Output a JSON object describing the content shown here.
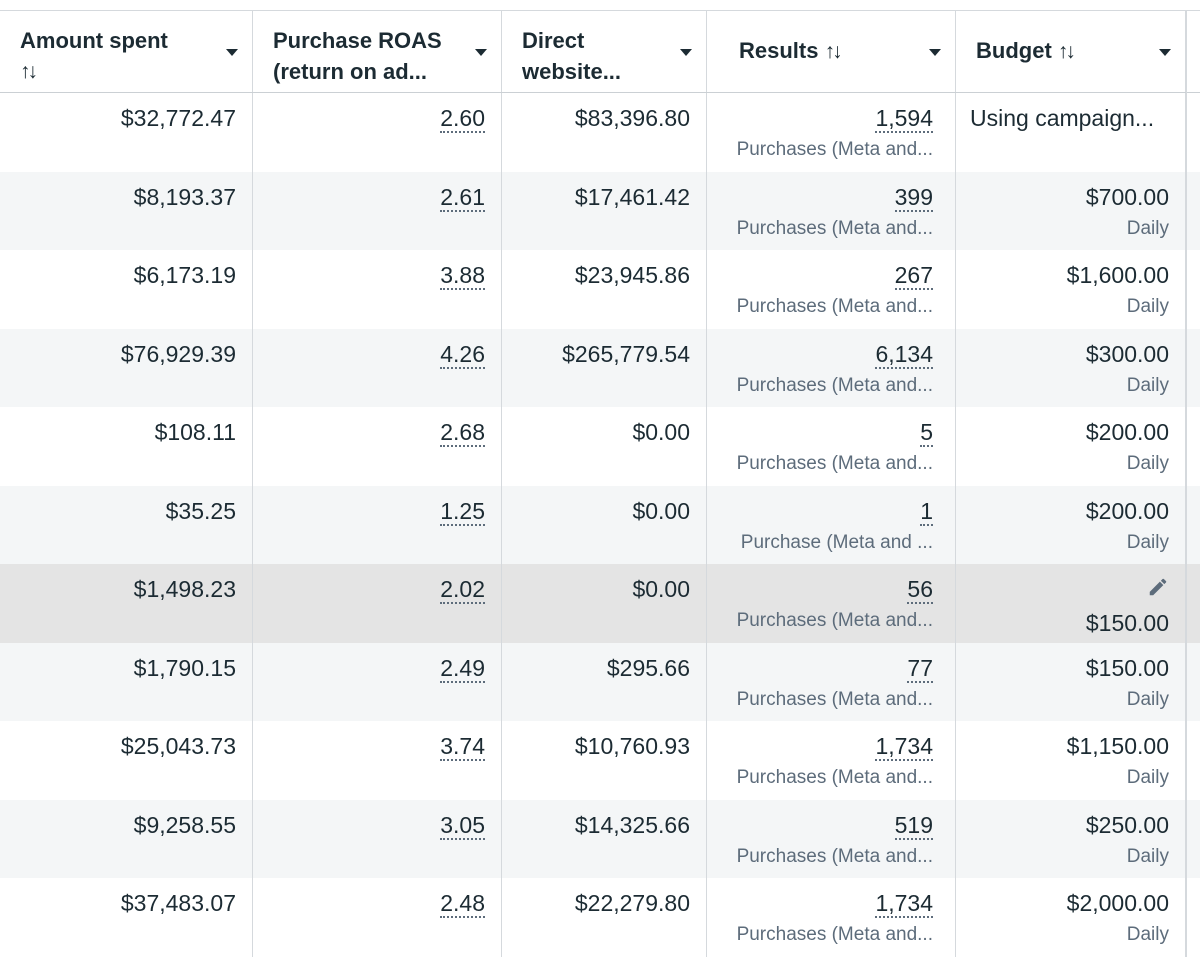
{
  "columns": {
    "amount_spent": {
      "line1": "Amount spent",
      "line2": "↑↓"
    },
    "purchase_roas": {
      "line1": "Purchase ROAS",
      "line2": "(return on ad..."
    },
    "direct_website": {
      "line1": "Direct",
      "line2": "website..."
    },
    "results": {
      "label": "Results",
      "sort": "↑↓"
    },
    "budget": {
      "label": "Budget",
      "sort": "↑↓"
    }
  },
  "rows": [
    {
      "amount_spent": "$32,772.47",
      "roas": "2.60",
      "direct": "$83,396.80",
      "results": "1,594",
      "results_type": "Purchases (Meta and...",
      "budget": "Using campaign...",
      "budget_period": ""
    },
    {
      "amount_spent": "$8,193.37",
      "roas": "2.61",
      "direct": "$17,461.42",
      "results": "399",
      "results_type": "Purchases (Meta and...",
      "budget": "$700.00",
      "budget_period": "Daily"
    },
    {
      "amount_spent": "$6,173.19",
      "roas": "3.88",
      "direct": "$23,945.86",
      "results": "267",
      "results_type": "Purchases (Meta and...",
      "budget": "$1,600.00",
      "budget_period": "Daily"
    },
    {
      "amount_spent": "$76,929.39",
      "roas": "4.26",
      "direct": "$265,779.54",
      "results": "6,134",
      "results_type": "Purchases (Meta and...",
      "budget": "$300.00",
      "budget_period": "Daily"
    },
    {
      "amount_spent": "$108.11",
      "roas": "2.68",
      "direct": "$0.00",
      "results": "5",
      "results_type": "Purchases (Meta and...",
      "budget": "$200.00",
      "budget_period": "Daily"
    },
    {
      "amount_spent": "$35.25",
      "roas": "1.25",
      "direct": "$0.00",
      "results": "1",
      "results_type": "Purchase (Meta and ...",
      "budget": "$200.00",
      "budget_period": "Daily"
    },
    {
      "amount_spent": "$1,498.23",
      "roas": "2.02",
      "direct": "$0.00",
      "results": "56",
      "results_type": "Purchases (Meta and...",
      "budget": "$150.00",
      "budget_period": ""
    },
    {
      "amount_spent": "$1,790.15",
      "roas": "2.49",
      "direct": "$295.66",
      "results": "77",
      "results_type": "Purchases (Meta and...",
      "budget": "$150.00",
      "budget_period": "Daily"
    },
    {
      "amount_spent": "$25,043.73",
      "roas": "3.74",
      "direct": "$10,760.93",
      "results": "1,734",
      "results_type": "Purchases (Meta and...",
      "budget": "$1,150.00",
      "budget_period": "Daily"
    },
    {
      "amount_spent": "$9,258.55",
      "roas": "3.05",
      "direct": "$14,325.66",
      "results": "519",
      "results_type": "Purchases (Meta and...",
      "budget": "$250.00",
      "budget_period": "Daily"
    },
    {
      "amount_spent": "$37,483.07",
      "roas": "2.48",
      "direct": "$22,279.80",
      "results": "1,734",
      "results_type": "Purchases (Meta and...",
      "budget": "$2,000.00",
      "budget_period": "Daily"
    }
  ],
  "icons": {
    "edit": "pencil-icon",
    "sort": "sort-arrows-icon",
    "menu": "caret-down-icon"
  }
}
